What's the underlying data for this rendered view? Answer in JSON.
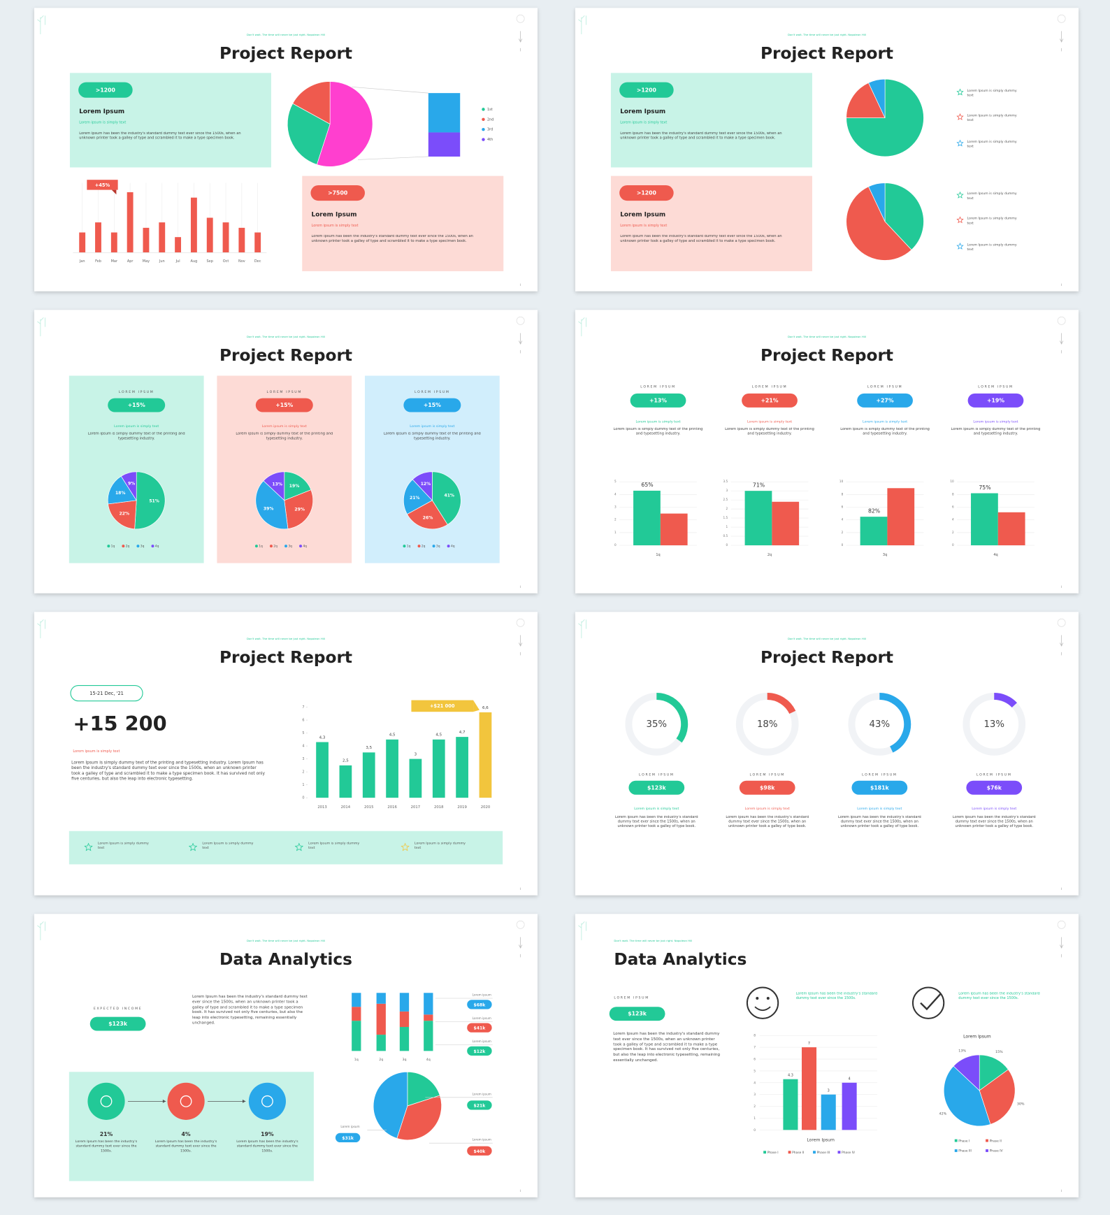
{
  "slides": [
    {
      "tagline": "Don't wait. The time will never be just right. Napoleon Hill",
      "title": "Project Report",
      "boxes": [
        {
          "badge": ">1200",
          "heading": "Lorem Ipsum",
          "subheading": "Lorem ipsum is simply text",
          "body": "Lorem Ipsum has been the industry's standard dummy text ever since the 1500s, when an unknown printer took a galley of type and scrambled it to make a type specimen book.",
          "color": "#22c997",
          "background": "#c8f3e7"
        },
        {
          "badge": ">7500",
          "heading": "Lorem Ipsum",
          "subheading": "Lorem ipsum is simply text",
          "body": "Lorem Ipsum has been the industry's standard dummy text ever since the 1500s, when an unknown printer took a galley of type and scrambled it to make a type specimen book.",
          "color": "#ef5a4e",
          "background": "#fddbd6"
        }
      ],
      "bar_chart": {
        "type": "bar",
        "categories": [
          "Jan",
          "Feb",
          "Mar",
          "Apr",
          "May",
          "Jun",
          "Jul",
          "Aug",
          "Sep",
          "Oct",
          "Nov",
          "Dec"
        ],
        "values": [
          26,
          39,
          26,
          78,
          32,
          39,
          20,
          71,
          45,
          39,
          32,
          26
        ],
        "color": "#ef5a4e",
        "annotation": "+45%"
      },
      "pie_chart": {
        "type": "pie",
        "values": [
          55,
          28,
          17
        ],
        "colors": [
          "#ff3fcf",
          "#22c997",
          "#ef5a4e"
        ],
        "breakdown": {
          "values": [
            62,
            38
          ],
          "colors": [
            "#29a8ea",
            "#7b4dfa"
          ]
        },
        "legend": [
          {
            "name": "1st",
            "color": "#22c997"
          },
          {
            "name": "2nd",
            "color": "#ef5a4e"
          },
          {
            "name": "3rd",
            "color": "#29a8ea"
          },
          {
            "name": "4th",
            "color": "#7b4dfa"
          }
        ]
      }
    },
    {
      "tagline": "Don't wait. The time will never be just right. Napoleon Hill",
      "title": "Project Report",
      "boxes": [
        {
          "badge": ">1200",
          "heading": "Lorem Ipsum",
          "subheading": "Lorem ipsum is simply text",
          "body": "Lorem Ipsum has been the industry's standard dummy text ever since the 1500s, when an unknown printer took a galley of type and scrambled it to make a type specimen book.",
          "color": "#22c997",
          "background": "#c8f3e7"
        },
        {
          "badge": ">1200",
          "heading": "Lorem Ipsum",
          "subheading": "Lorem ipsum is simply text",
          "body": "Lorem Ipsum has been the industry's standard dummy text ever since the 1500s, when an unknown printer took a galley of type and scrambled it to make a type specimen book.",
          "color": "#ef5a4e",
          "background": "#fddbd6"
        }
      ],
      "pies": [
        {
          "type": "pie",
          "values": [
            75,
            18,
            7
          ],
          "colors": [
            "#22c997",
            "#ef5a4e",
            "#29a8ea"
          ],
          "legend": [
            "Lorem Ipsum is simply dummy text",
            "Lorem Ipsum is simply dummy text",
            "Lorem Ipsum is simply dummy text"
          ]
        },
        {
          "type": "pie",
          "values": [
            38,
            55,
            7
          ],
          "colors": [
            "#22c997",
            "#ef5a4e",
            "#29a8ea"
          ],
          "legend": [
            "Lorem Ipsum is simply dummy text",
            "Lorem Ipsum is simply dummy text",
            "Lorem Ipsum is simply dummy text"
          ]
        }
      ]
    },
    {
      "tagline": "Don't wait. The time will never be just right. Napoleon Hill",
      "title": "Project Report",
      "columns": [
        {
          "label": "LOREM IPSUM",
          "badge": "+15%",
          "subheading": "Lorem ipsum is simply text",
          "body": "Lorem Ipsum is simply dummy text of the printing and typesetting industry.",
          "color": "#22c997",
          "background": "#c8f3e7",
          "chart": {
            "type": "pie",
            "categories": [
              "1q",
              "2q",
              "3q",
              "4q"
            ],
            "values": [
              51,
              22,
              18,
              9
            ],
            "value_labels": [
              "51%",
              "22%",
              "18%",
              "9%"
            ],
            "colors": [
              "#22c997",
              "#ef5a4e",
              "#29a8ea",
              "#7b4dfa"
            ]
          }
        },
        {
          "label": "LOREM IPSUM",
          "badge": "+15%",
          "subheading": "Lorem ipsum is simply text",
          "body": "Lorem Ipsum is simply dummy text of the printing and typesetting industry.",
          "color": "#ef5a4e",
          "background": "#fddbd6",
          "chart": {
            "type": "pie",
            "categories": [
              "1q",
              "2q",
              "3q",
              "4q"
            ],
            "values": [
              19,
              29,
              39,
              13
            ],
            "value_labels": [
              "19%",
              "29%",
              "39%",
              "13%"
            ],
            "colors": [
              "#22c997",
              "#ef5a4e",
              "#29a8ea",
              "#7b4dfa"
            ]
          }
        },
        {
          "label": "LOREM IPSUM",
          "badge": "+15%",
          "subheading": "Lorem ipsum is simply text",
          "body": "Lorem Ipsum is simply dummy text of the printing and typesetting industry.",
          "color": "#29a8ea",
          "background": "#d1eefc",
          "chart": {
            "type": "pie",
            "categories": [
              "1q",
              "2q",
              "3q",
              "4q"
            ],
            "values": [
              41,
              26,
              21,
              12
            ],
            "value_labels": [
              "41%",
              "26%",
              "21%",
              "12%"
            ],
            "colors": [
              "#22c997",
              "#ef5a4e",
              "#29a8ea",
              "#7b4dfa"
            ]
          }
        }
      ]
    },
    {
      "tagline": "Don't wait. The time will never be just right. Napoleon Hill",
      "title": "Project Report",
      "columns": [
        {
          "label": "LOREM IPSUM",
          "badge": "+13%",
          "subheading": "Lorem ipsum is simply text",
          "body": "Lorem Ipsum is simply dummy text of the printing and typesetting industry.",
          "color": "#22c997",
          "chart": {
            "type": "bar",
            "category": "1q",
            "values": [
              4.3,
              2.5
            ],
            "colors": [
              "#22c997",
              "#ef5a4e"
            ],
            "ylim": [
              0,
              5
            ],
            "yticks": [
              0,
              1,
              2,
              3,
              4,
              5
            ],
            "annotation": "65%"
          }
        },
        {
          "label": "LOREM IPSUM",
          "badge": "+21%",
          "subheading": "Lorem ipsum is simply text",
          "body": "Lorem Ipsum is simply dummy text of the printing and typesetting industry.",
          "color": "#ef5a4e",
          "chart": {
            "type": "bar",
            "category": "2q",
            "values": [
              3.0,
              2.4
            ],
            "colors": [
              "#22c997",
              "#ef5a4e"
            ],
            "ylim": [
              0,
              3.5
            ],
            "yticks": [
              0,
              0.5,
              1,
              1.5,
              2,
              2.5,
              3,
              3.5
            ],
            "annotation": "71%"
          }
        },
        {
          "label": "LOREM IPSUM",
          "badge": "+27%",
          "subheading": "Lorem ipsum is simply text",
          "body": "Lorem Ipsum is simply dummy text of the printing and typesetting industry.",
          "color": "#29a8ea",
          "chart": {
            "type": "bar",
            "category": "3q",
            "values": [
              4.5,
              9
            ],
            "colors": [
              "#22c997",
              "#ef5a4e"
            ],
            "ylim": [
              0,
              10
            ],
            "yticks": [
              0,
              2,
              4,
              6,
              8,
              10
            ],
            "annotation": "82%"
          }
        },
        {
          "label": "LOREM IPSUM",
          "badge": "+19%",
          "subheading": "Lorem ipsum is simply text",
          "body": "Lorem Ipsum is simply dummy text of the printing and typesetting industry.",
          "color": "#7b4dfa",
          "chart": {
            "type": "bar",
            "category": "4q",
            "values": [
              8.2,
              5.2
            ],
            "colors": [
              "#22c997",
              "#ef5a4e"
            ],
            "ylim": [
              0,
              10
            ],
            "yticks": [
              0,
              2,
              4,
              6,
              8,
              10
            ],
            "annotation": "75%"
          }
        }
      ]
    },
    {
      "tagline": "Don't wait. The time will never be just right. Napoleon Hill",
      "title": "Project Report",
      "date": "15-21 Dec, '21",
      "headline": "+15 200",
      "subheading": "Lorem ipsum is simply text",
      "body": "Lorem Ipsum is simply dummy text of the printing and typesetting industry. Lorem Ipsum has been the industry's standard dummy text ever since the 1500s, when an unknown printer took a galley of type and scrambled it to make a type specimen book. It has survived not only five centuries, but also the leap into electronic typesetting.",
      "chart": {
        "type": "bar",
        "categories": [
          "2013",
          "2014",
          "2015",
          "2016",
          "2017",
          "2018",
          "2019",
          "2020"
        ],
        "values": [
          4.3,
          2.5,
          3.5,
          4.5,
          3,
          4.5,
          4.7,
          6.6
        ],
        "value_labels": [
          "4,3",
          "2,5",
          "3,5",
          "4,5",
          "3",
          "4,5",
          "4,7",
          "6,6"
        ],
        "colors": [
          "#22c997",
          "#22c997",
          "#22c997",
          "#22c997",
          "#22c997",
          "#22c997",
          "#22c997",
          "#f2c53d"
        ],
        "ylim": [
          0,
          7
        ],
        "yticks": [
          0,
          1,
          2,
          3,
          4,
          5,
          6,
          7
        ],
        "grid": false,
        "annotation": "+$21 000"
      },
      "features": [
        {
          "text": "Lorem Ipsum is simply dummy text",
          "color": "#22c997"
        },
        {
          "text": "Lorem Ipsum is simply dummy text",
          "color": "#22c997"
        },
        {
          "text": "Lorem Ipsum is simply dummy text",
          "color": "#22c997"
        },
        {
          "text": "Lorem Ipsum is simply dummy text",
          "color": "#f2c53d"
        }
      ]
    },
    {
      "tagline": "Don't wait. The time will never be just right. Napoleon Hill",
      "title": "Project Report",
      "columns": [
        {
          "label": "LOREM IPSUM",
          "badge": "$123k",
          "subheading": "Lorem ipsum is simply text",
          "body": "Lorem Ipsum has been the industry's standard dummy text ever since the 1500s, when an unknown printer took a galley of type book.",
          "color": "#22c997",
          "chart": {
            "type": "donut",
            "values": [
              35
            ],
            "value_labels": [
              "35%"
            ],
            "ylim": [
              0,
              100
            ]
          }
        },
        {
          "label": "LOREM IPSUM",
          "badge": "$98k",
          "subheading": "Lorem ipsum is simply text",
          "body": "Lorem Ipsum has been the industry's standard dummy text ever since the 1500s, when an unknown printer took a galley of type book.",
          "color": "#ef5a4e",
          "chart": {
            "type": "donut",
            "values": [
              18
            ],
            "value_labels": [
              "18%"
            ],
            "ylim": [
              0,
              100
            ]
          }
        },
        {
          "label": "LOREM IPSUM",
          "badge": "$181k",
          "subheading": "Lorem ipsum is simply text",
          "body": "Lorem Ipsum has been the industry's standard dummy text ever since the 1500s, when an unknown printer took a galley of type book.",
          "color": "#29a8ea",
          "chart": {
            "type": "donut",
            "values": [
              43
            ],
            "value_labels": [
              "43%"
            ],
            "ylim": [
              0,
              100
            ]
          }
        },
        {
          "label": "LOREM IPSUM",
          "badge": "$76k",
          "subheading": "Lorem ipsum is simply text",
          "body": "Lorem Ipsum has been the industry's standard dummy text ever since the 1500s, when an unknown printer took a galley of type book.",
          "color": "#7b4dfa",
          "chart": {
            "type": "donut",
            "values": [
              13
            ],
            "value_labels": [
              "13%"
            ],
            "ylim": [
              0,
              100
            ]
          }
        }
      ]
    },
    {
      "tagline": "Don't wait. The time will never be just right. Napoleon Hill",
      "title": "Data Analytics",
      "income_label": "EXPECTED INCOME",
      "badge": "$123k",
      "body": "Lorem Ipsum has been the industry's standard dummy text ever since the 1500s, when an unknown printer took a galley of type and scrambled it to make a type specimen book. It has survived not only five centuries, but also the leap into electronic typesetting, remaining essentially unchanged.",
      "stacked_chart": {
        "type": "stacked_bar",
        "categories": [
          "1q",
          "2q",
          "3q",
          "4q"
        ],
        "series": [
          {
            "color": "#22c997",
            "values": [
              39,
              21,
              31,
              39
            ]
          },
          {
            "color": "#ef5a4e",
            "values": [
              18,
              40,
              20,
              8
            ]
          },
          {
            "color": "#29a8ea",
            "values": [
              18,
              14,
              24,
              28
            ]
          }
        ],
        "callouts": [
          {
            "label": "Lorem ipsum",
            "value": "$68k",
            "color": "#29a8ea"
          },
          {
            "label": "Lorem ipsum",
            "value": "$41k",
            "color": "#ef5a4e"
          },
          {
            "label": "Lorem ipsum",
            "value": "$12k",
            "color": "#22c997"
          }
        ]
      },
      "process": [
        {
          "value": "21%",
          "body": "Lorem Ipsum has been the industry's standard dummy text ever since the 1500s.",
          "color": "#22c997"
        },
        {
          "value": "4%",
          "body": "Lorem Ipsum has been the industry's standard dummy text ever since the 1500s.",
          "color": "#ef5a4e"
        },
        {
          "value": "19%",
          "body": "Lorem Ipsum has been the industry's standard dummy text ever since the 1500s.",
          "color": "#29a8ea"
        }
      ],
      "pie_chart": {
        "type": "pie",
        "values": [
          20,
          35,
          45
        ],
        "colors": [
          "#22c997",
          "#ef5a4e",
          "#29a8ea"
        ],
        "callouts": [
          {
            "label": "Lorem ipsum",
            "value": "$31k",
            "color": "#29a8ea"
          },
          {
            "label": "Lorem ipsum",
            "value": "$21k",
            "color": "#22c997"
          },
          {
            "label": "Lorem ipsum",
            "value": "$40k",
            "color": "#ef5a4e"
          }
        ]
      }
    },
    {
      "tagline": "Don't wait. The time will never be just right. Napoleon Hill",
      "title": "Data Analytics",
      "label": "LOREM IPSUM",
      "badge": "$123k",
      "body": "Lorem Ipsum has been the industry's standard dummy text ever since the 1500s, when an unknown printer took a galley of type and scrambled it to make a type specimen book. It has survived not only five centuries, but also the leap into electronic typesetting, remaining essentially unchanged.",
      "highlights": [
        "Lorem Ipsum has been the industry's standard dummy text ever since the 1500s.",
        "Lorem Ipsum has been the industry's standard dummy text ever since the 1500s."
      ],
      "bar_chart": {
        "type": "bar",
        "categories": [
          "Phase I",
          "Phase II",
          "Phase III",
          "Phase IV"
        ],
        "values": [
          4.3,
          7,
          3,
          4
        ],
        "colors": [
          "#22c997",
          "#ef5a4e",
          "#29a8ea",
          "#7b4dfa"
        ],
        "ylim": [
          0,
          8
        ],
        "yticks": [
          0,
          1,
          2,
          3,
          4,
          5,
          6,
          7,
          8
        ],
        "grid": true,
        "xlabel": "Lorem Ipsum"
      },
      "pie_chart": {
        "type": "pie",
        "title": "Lorem Ipsum",
        "categories": [
          "Phase I",
          "Phase II",
          "Phase III",
          "Phase IV"
        ],
        "values": [
          15,
          30,
          42,
          13
        ],
        "value_labels": [
          "15%",
          "30%",
          "42%",
          "13%"
        ],
        "colors": [
          "#22c997",
          "#ef5a4e",
          "#29a8ea",
          "#7b4dfa"
        ]
      }
    }
  ]
}
